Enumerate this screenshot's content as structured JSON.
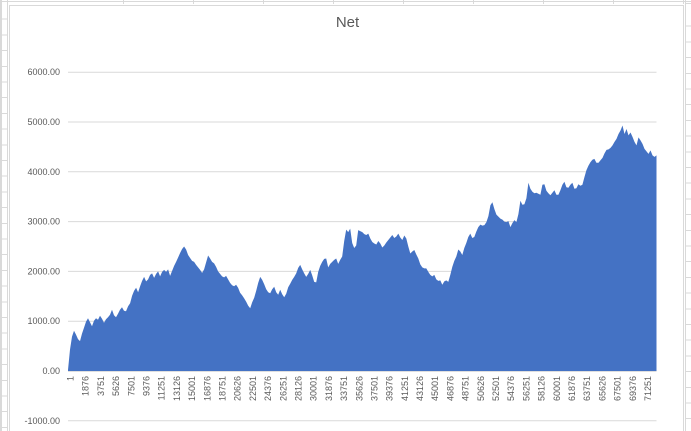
{
  "chart": {
    "title": "Net",
    "colors": {
      "area_fill": "#4472C4",
      "gridline": "#D9D9D9",
      "axis_line": "#BFBFBF",
      "label_text": "#595959",
      "chart_border": "#D9D9D9"
    }
  },
  "chart_data": {
    "type": "area",
    "title": "Net",
    "legend": "none",
    "grid": "horizontal-major",
    "ylim": [
      -1000,
      6000
    ],
    "y_tick_step": 1000,
    "y_tick_labels": [
      "6000.00",
      "5000.00",
      "4000.00",
      "3000.00",
      "2000.00",
      "1000.00",
      "0.00",
      "-1000.00"
    ],
    "x_range": [
      1,
      72500
    ],
    "x_tick_labels": [
      "1",
      "1876",
      "3751",
      "5626",
      "7501",
      "9376",
      "11251",
      "13126",
      "15001",
      "16876",
      "18751",
      "20626",
      "22501",
      "24376",
      "26251",
      "28126",
      "30001",
      "31876",
      "33751",
      "35626",
      "37501",
      "39376",
      "41251",
      "43126",
      "45001",
      "46876",
      "48751",
      "50626",
      "52501",
      "54376",
      "56251",
      "58126",
      "60001",
      "61876",
      "63751",
      "65626",
      "67501",
      "69376",
      "71251"
    ],
    "x_tick_label_rotation_deg": -90,
    "series": [
      {
        "name": "Net",
        "sampling": "evenly spaced samples across x_range, read from plot",
        "values": [
          20,
          430,
          690,
          810,
          730,
          640,
          600,
          750,
          870,
          990,
          1060,
          980,
          900,
          1010,
          1060,
          1030,
          1110,
          1050,
          970,
          1040,
          1080,
          1130,
          1230,
          1120,
          1080,
          1150,
          1230,
          1280,
          1210,
          1200,
          1300,
          1360,
          1510,
          1610,
          1670,
          1580,
          1700,
          1810,
          1890,
          1800,
          1840,
          1930,
          1960,
          1870,
          1950,
          2000,
          1900,
          1990,
          2030,
          1990,
          2040,
          1910,
          2010,
          2110,
          2190,
          2280,
          2370,
          2450,
          2500,
          2440,
          2330,
          2270,
          2210,
          2190,
          2130,
          2080,
          2030,
          1970,
          2040,
          2180,
          2320,
          2260,
          2190,
          2160,
          2090,
          2000,
          1950,
          1900,
          1880,
          1910,
          1840,
          1770,
          1720,
          1700,
          1730,
          1670,
          1570,
          1520,
          1460,
          1390,
          1310,
          1260,
          1380,
          1470,
          1610,
          1770,
          1890,
          1830,
          1740,
          1640,
          1580,
          1560,
          1640,
          1690,
          1580,
          1530,
          1630,
          1540,
          1480,
          1550,
          1680,
          1750,
          1830,
          1890,
          1960,
          2070,
          2130,
          2040,
          1960,
          1890,
          1950,
          2030,
          1920,
          1790,
          1780,
          1990,
          2110,
          2190,
          2250,
          2260,
          2080,
          2150,
          2190,
          2230,
          2260,
          2150,
          2230,
          2300,
          2610,
          2840,
          2790,
          2860,
          2570,
          2470,
          2520,
          2830,
          2810,
          2790,
          2750,
          2730,
          2760,
          2660,
          2590,
          2560,
          2540,
          2610,
          2560,
          2480,
          2520,
          2580,
          2630,
          2680,
          2730,
          2670,
          2700,
          2760,
          2680,
          2630,
          2720,
          2660,
          2500,
          2360,
          2400,
          2430,
          2340,
          2260,
          2140,
          2080,
          2060,
          2060,
          1990,
          1930,
          1900,
          1930,
          1840,
          1810,
          1820,
          1730,
          1800,
          1820,
          1790,
          1930,
          2090,
          2210,
          2300,
          2440,
          2400,
          2330,
          2470,
          2570,
          2690,
          2760,
          2670,
          2690,
          2800,
          2890,
          2940,
          2920,
          2930,
          2990,
          3110,
          3330,
          3390,
          3250,
          3140,
          3100,
          3060,
          3040,
          3000,
          2990,
          3010,
          2890,
          2970,
          3030,
          2990,
          3150,
          3420,
          3340,
          3350,
          3470,
          3780,
          3660,
          3600,
          3570,
          3580,
          3560,
          3540,
          3740,
          3750,
          3620,
          3570,
          3530,
          3580,
          3630,
          3540,
          3540,
          3630,
          3740,
          3800,
          3690,
          3680,
          3740,
          3780,
          3660,
          3670,
          3750,
          3720,
          3740,
          3890,
          4030,
          4120,
          4190,
          4240,
          4260,
          4180,
          4180,
          4230,
          4280,
          4370,
          4440,
          4450,
          4480,
          4530,
          4600,
          4660,
          4760,
          4830,
          4930,
          4760,
          4860,
          4730,
          4790,
          4700,
          4600,
          4530,
          4690,
          4630,
          4560,
          4460,
          4410,
          4360,
          4430,
          4330,
          4300,
          4330
        ]
      }
    ]
  }
}
